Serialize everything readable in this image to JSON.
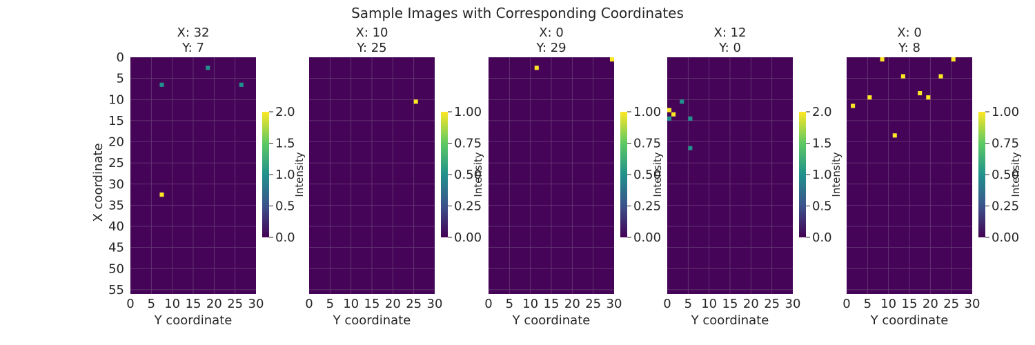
{
  "figure": {
    "title": "Sample Images with Corresponding Coordinates"
  },
  "colors": {
    "background": "#450457",
    "grid": "#6a3d7a",
    "viridis": [
      "#440154",
      "#3b528b",
      "#21918c",
      "#5ec962",
      "#fde725"
    ]
  },
  "chart_data": [
    {
      "type": "heatmap",
      "title": "X: 32\nY: 7",
      "title_lines": [
        "X: 32",
        "Y: 7"
      ],
      "xlabel": "Y coordinate",
      "ylabel": "X coordinate",
      "xlim": [
        0,
        30
      ],
      "ylim": [
        0,
        56
      ],
      "xticks": [
        0,
        5,
        10,
        15,
        20,
        25,
        30
      ],
      "yticks": [
        0,
        5,
        10,
        15,
        20,
        25,
        30,
        35,
        40,
        45,
        50,
        55
      ],
      "colorbar": {
        "label": "Intensity",
        "min": 0,
        "max": 2,
        "ticks": [
          "0.0",
          "0.5",
          "1.0",
          "1.5",
          "2.0"
        ]
      },
      "points": [
        {
          "x": 18,
          "y": 2,
          "value": 1
        },
        {
          "x": 7,
          "y": 6,
          "value": 1
        },
        {
          "x": 26,
          "y": 6,
          "value": 1
        },
        {
          "x": 7,
          "y": 32,
          "value": 2
        }
      ]
    },
    {
      "type": "heatmap",
      "title": "X: 10\nY: 25",
      "title_lines": [
        "X: 10",
        "Y: 25"
      ],
      "xlabel": "Y coordinate",
      "ylabel": "",
      "xlim": [
        0,
        30
      ],
      "ylim": [
        0,
        56
      ],
      "xticks": [
        0,
        5,
        10,
        15,
        20,
        25,
        30
      ],
      "yticks": [],
      "colorbar": {
        "label": "Intensity",
        "min": 0,
        "max": 1,
        "ticks": [
          "0.00",
          "0.25",
          "0.50",
          "0.75",
          "1.00"
        ]
      },
      "points": [
        {
          "x": 25,
          "y": 10,
          "value": 1
        }
      ]
    },
    {
      "type": "heatmap",
      "title": "X: 0\nY: 29",
      "title_lines": [
        "X: 0",
        "Y: 29"
      ],
      "xlabel": "Y coordinate",
      "ylabel": "",
      "xlim": [
        0,
        30
      ],
      "ylim": [
        0,
        56
      ],
      "xticks": [
        0,
        5,
        10,
        15,
        20,
        25,
        30
      ],
      "yticks": [],
      "colorbar": {
        "label": "Intensity",
        "min": 0,
        "max": 1,
        "ticks": [
          "0.00",
          "0.25",
          "0.50",
          "0.75",
          "1.00"
        ]
      },
      "points": [
        {
          "x": 29,
          "y": 0,
          "value": 1
        },
        {
          "x": 11,
          "y": 2,
          "value": 1
        }
      ]
    },
    {
      "type": "heatmap",
      "title": "X: 12\nY: 0",
      "title_lines": [
        "X: 12",
        "Y: 0"
      ],
      "xlabel": "Y coordinate",
      "ylabel": "",
      "xlim": [
        0,
        30
      ],
      "ylim": [
        0,
        56
      ],
      "xticks": [
        0,
        5,
        10,
        15,
        20,
        25,
        30
      ],
      "yticks": [],
      "colorbar": {
        "label": "Intensity",
        "min": 0,
        "max": 2,
        "ticks": [
          "0.0",
          "0.5",
          "1.0",
          "1.5",
          "2.0"
        ]
      },
      "points": [
        {
          "x": 3,
          "y": 10,
          "value": 1
        },
        {
          "x": 0,
          "y": 12,
          "value": 2
        },
        {
          "x": 1,
          "y": 13,
          "value": 2
        },
        {
          "x": 0,
          "y": 14,
          "value": 1
        },
        {
          "x": 5,
          "y": 14,
          "value": 1
        },
        {
          "x": 5,
          "y": 21,
          "value": 1
        }
      ]
    },
    {
      "type": "heatmap",
      "title": "X: 0\nY: 8",
      "title_lines": [
        "X: 0",
        "Y: 8"
      ],
      "xlabel": "Y coordinate",
      "ylabel": "",
      "xlim": [
        0,
        30
      ],
      "ylim": [
        0,
        56
      ],
      "xticks": [
        0,
        5,
        10,
        15,
        20,
        25,
        30
      ],
      "yticks": [],
      "colorbar": {
        "label": "Intensity",
        "min": 0,
        "max": 1,
        "ticks": [
          "0.00",
          "0.25",
          "0.50",
          "0.75",
          "1.00"
        ]
      },
      "points": [
        {
          "x": 8,
          "y": 0,
          "value": 1
        },
        {
          "x": 25,
          "y": 0,
          "value": 1
        },
        {
          "x": 13,
          "y": 4,
          "value": 1
        },
        {
          "x": 22,
          "y": 4,
          "value": 1
        },
        {
          "x": 17,
          "y": 8,
          "value": 1
        },
        {
          "x": 5,
          "y": 9,
          "value": 1
        },
        {
          "x": 19,
          "y": 9,
          "value": 1
        },
        {
          "x": 1,
          "y": 11,
          "value": 1
        },
        {
          "x": 11,
          "y": 18,
          "value": 1
        }
      ]
    }
  ]
}
